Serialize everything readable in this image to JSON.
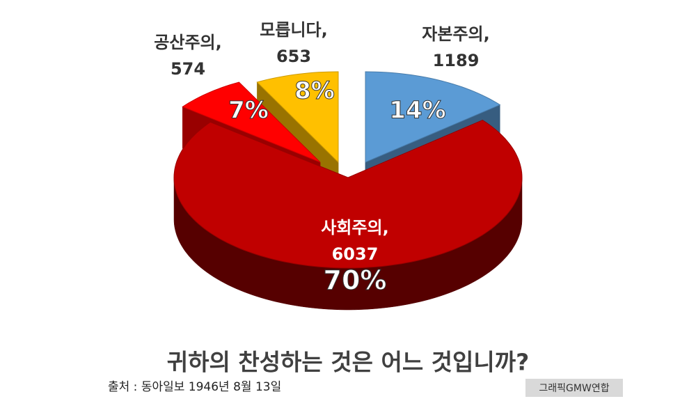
{
  "chart_data": {
    "type": "pie",
    "title": "귀하의 찬성하는 것은 어느 것입니까?",
    "categories": [
      "자본주의,",
      "사회주의,",
      "공산주의,",
      "모릅니다,"
    ],
    "values": [
      1189,
      6037,
      574,
      653
    ],
    "percent_labels": [
      "14%",
      "70%",
      "7%",
      "8%"
    ],
    "colors": [
      "#5b9bd5",
      "#c00000",
      "#ff0000",
      "#ffc000"
    ],
    "source": "출처 : 동아일보 1946년 8월 13일",
    "credit": "그래픽GMW연합"
  }
}
